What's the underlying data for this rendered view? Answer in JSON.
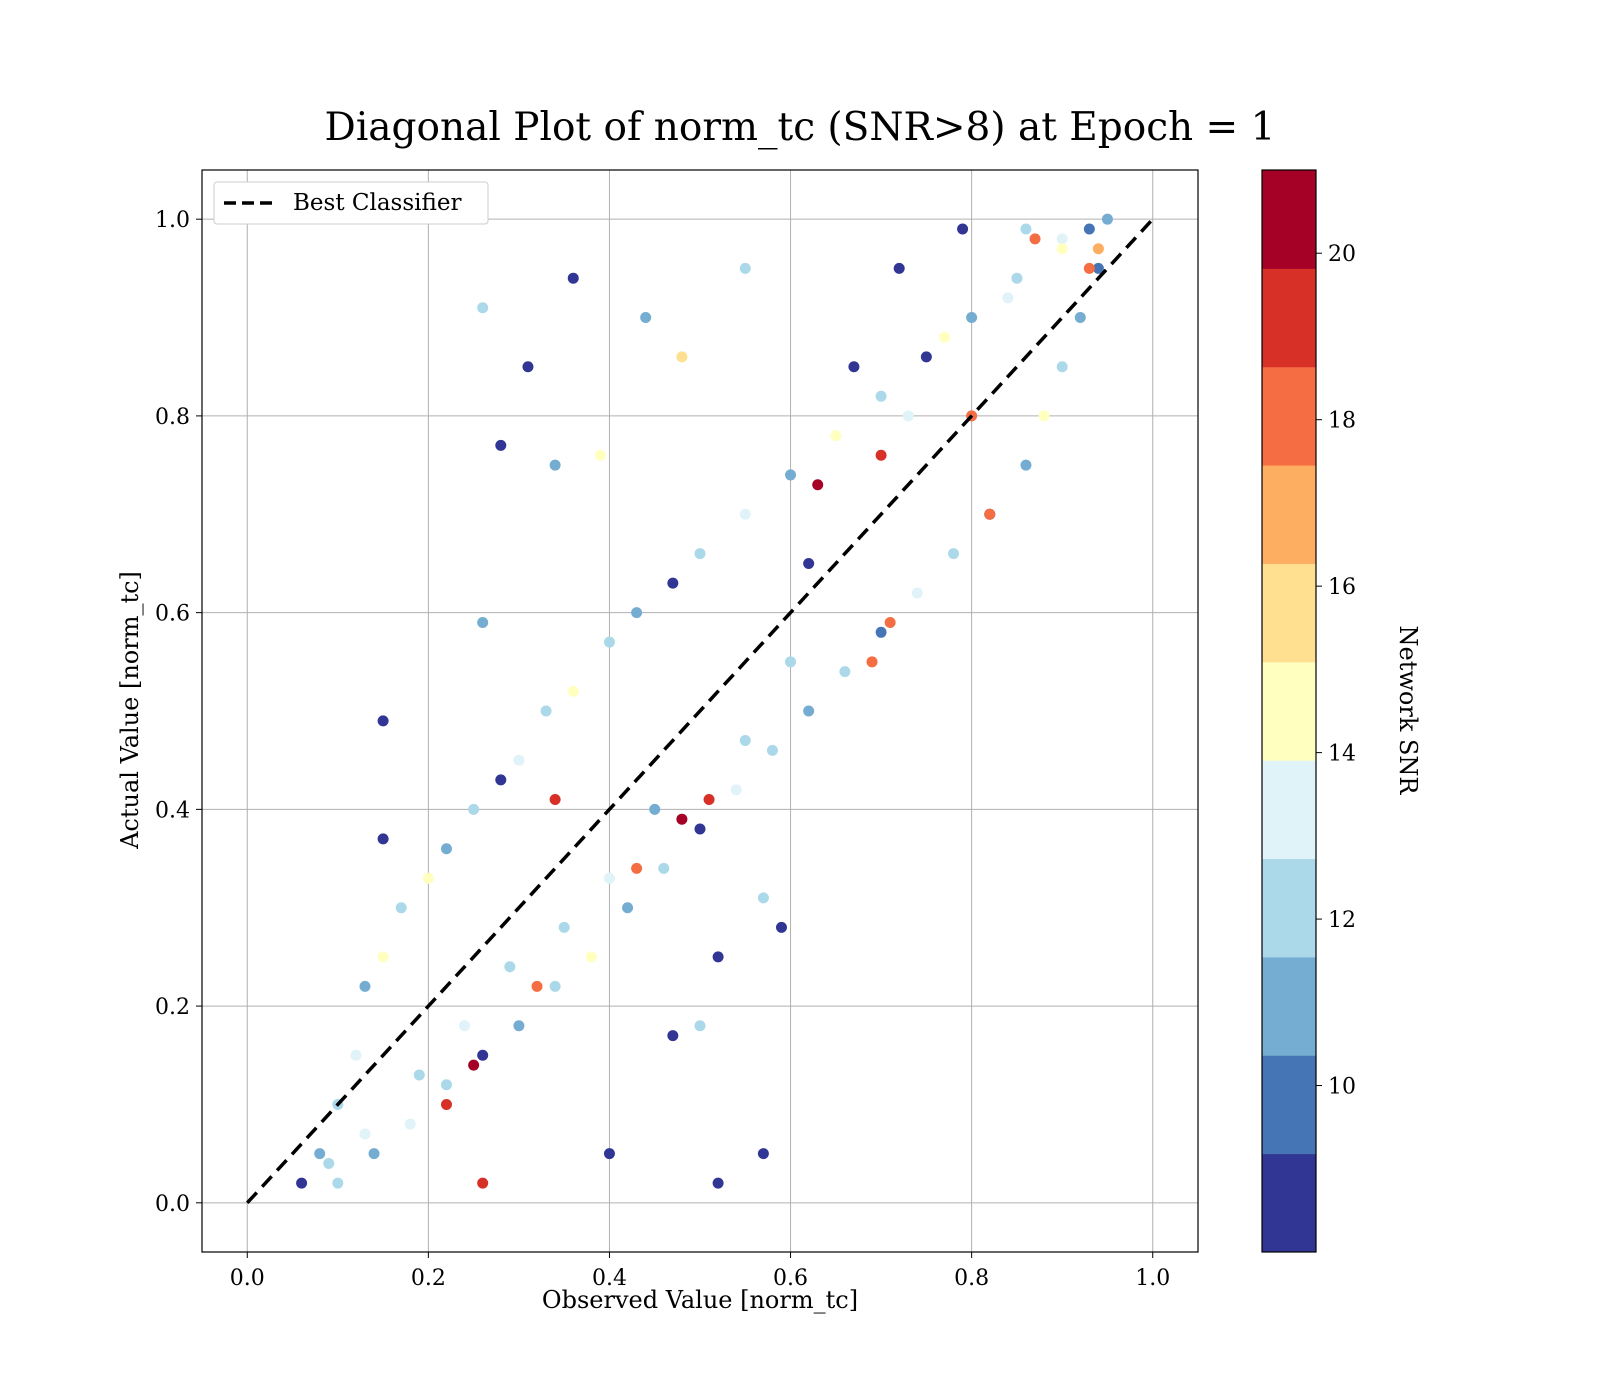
{
  "chart_data": {
    "type": "scatter",
    "title": "Diagonal Plot of norm_tc (SNR>8) at Epoch = 1",
    "xlabel": "Observed Value [norm_tc]",
    "ylabel": "Actual Value [norm_tc]",
    "xlim": [
      -0.05,
      1.05
    ],
    "ylim": [
      -0.05,
      1.05
    ],
    "xticks": [
      "0.0",
      "0.2",
      "0.4",
      "0.6",
      "0.8",
      "1.0"
    ],
    "yticks": [
      "0.0",
      "0.2",
      "0.4",
      "0.6",
      "0.8",
      "1.0"
    ],
    "grid": true,
    "legend": {
      "placement": "upper-left",
      "entries": [
        "Best Classifier"
      ]
    },
    "reference_line": {
      "name": "Best Classifier",
      "x": [
        0.0,
        1.0
      ],
      "y": [
        0.0,
        1.0
      ],
      "style": "dashed",
      "color": "#000000"
    },
    "colorbar": {
      "label": "Network SNR",
      "range": [
        8,
        21
      ],
      "ticks": [
        "10",
        "12",
        "14",
        "16",
        "18",
        "20"
      ],
      "colors": [
        "#313695",
        "#4575b4",
        "#74add1",
        "#abd9e9",
        "#e0f3f8",
        "#ffffbf",
        "#fee090",
        "#fdae61",
        "#f46d43",
        "#d73027",
        "#a50026"
      ]
    },
    "series": [
      {
        "kind": "scatter",
        "points": [
          [
            0.06,
            0.02,
            9
          ],
          [
            0.08,
            0.05,
            11
          ],
          [
            0.1,
            0.1,
            12
          ],
          [
            0.12,
            0.15,
            13
          ],
          [
            0.13,
            0.22,
            11
          ],
          [
            0.15,
            0.25,
            14
          ],
          [
            0.17,
            0.3,
            12
          ],
          [
            0.2,
            0.33,
            15
          ],
          [
            0.22,
            0.36,
            11
          ],
          [
            0.25,
            0.4,
            12
          ],
          [
            0.28,
            0.43,
            9
          ],
          [
            0.3,
            0.45,
            13
          ],
          [
            0.33,
            0.5,
            12
          ],
          [
            0.36,
            0.52,
            15
          ],
          [
            0.4,
            0.57,
            12
          ],
          [
            0.43,
            0.6,
            11
          ],
          [
            0.47,
            0.63,
            9
          ],
          [
            0.5,
            0.66,
            12
          ],
          [
            0.55,
            0.7,
            13
          ],
          [
            0.6,
            0.74,
            11
          ],
          [
            0.65,
            0.78,
            15
          ],
          [
            0.7,
            0.82,
            12
          ],
          [
            0.75,
            0.86,
            9
          ],
          [
            0.8,
            0.9,
            11
          ],
          [
            0.85,
            0.94,
            12
          ],
          [
            0.9,
            0.98,
            13
          ],
          [
            0.93,
            0.99,
            10
          ],
          [
            0.95,
            1.0,
            11
          ],
          [
            0.1,
            0.02,
            12
          ],
          [
            0.14,
            0.05,
            11
          ],
          [
            0.18,
            0.08,
            13
          ],
          [
            0.22,
            0.12,
            12
          ],
          [
            0.26,
            0.15,
            9
          ],
          [
            0.3,
            0.18,
            11
          ],
          [
            0.34,
            0.22,
            12
          ],
          [
            0.38,
            0.25,
            14
          ],
          [
            0.42,
            0.3,
            11
          ],
          [
            0.46,
            0.34,
            12
          ],
          [
            0.5,
            0.38,
            9
          ],
          [
            0.54,
            0.42,
            13
          ],
          [
            0.58,
            0.46,
            12
          ],
          [
            0.62,
            0.5,
            11
          ],
          [
            0.66,
            0.54,
            12
          ],
          [
            0.7,
            0.58,
            10
          ],
          [
            0.74,
            0.62,
            13
          ],
          [
            0.78,
            0.66,
            12
          ],
          [
            0.82,
            0.7,
            9
          ],
          [
            0.86,
            0.75,
            11
          ],
          [
            0.88,
            0.8,
            14
          ],
          [
            0.9,
            0.85,
            12
          ],
          [
            0.92,
            0.9,
            11
          ],
          [
            0.94,
            0.95,
            10
          ],
          [
            0.34,
            0.41,
            19
          ],
          [
            0.51,
            0.41,
            19
          ],
          [
            0.48,
            0.39,
            20
          ],
          [
            0.25,
            0.14,
            20
          ],
          [
            0.26,
            0.02,
            19
          ],
          [
            0.7,
            0.76,
            19
          ],
          [
            0.71,
            0.59,
            18
          ],
          [
            0.69,
            0.55,
            18
          ],
          [
            0.63,
            0.73,
            21
          ],
          [
            0.8,
            0.8,
            18
          ],
          [
            0.82,
            0.7,
            18
          ],
          [
            0.93,
            0.95,
            18
          ],
          [
            0.94,
            0.97,
            17
          ],
          [
            0.87,
            0.98,
            18
          ],
          [
            0.43,
            0.34,
            18
          ],
          [
            0.22,
            0.1,
            19
          ],
          [
            0.32,
            0.22,
            18
          ],
          [
            0.26,
            0.91,
            12
          ],
          [
            0.31,
            0.85,
            9
          ],
          [
            0.36,
            0.94,
            9
          ],
          [
            0.28,
            0.77,
            9
          ],
          [
            0.34,
            0.75,
            11
          ],
          [
            0.15,
            0.49,
            9
          ],
          [
            0.15,
            0.37,
            9
          ],
          [
            0.26,
            0.59,
            11
          ],
          [
            0.39,
            0.76,
            14
          ],
          [
            0.48,
            0.86,
            16
          ],
          [
            0.55,
            0.95,
            12
          ],
          [
            0.44,
            0.9,
            11
          ],
          [
            0.57,
            0.31,
            12
          ],
          [
            0.59,
            0.28,
            9
          ],
          [
            0.57,
            0.05,
            9
          ],
          [
            0.52,
            0.02,
            9
          ],
          [
            0.4,
            0.05,
            9
          ],
          [
            0.5,
            0.18,
            12
          ],
          [
            0.47,
            0.17,
            9
          ],
          [
            0.52,
            0.25,
            9
          ],
          [
            0.62,
            0.65,
            9
          ],
          [
            0.67,
            0.85,
            9
          ],
          [
            0.72,
            0.95,
            9
          ],
          [
            0.79,
            0.99,
            9
          ],
          [
            0.86,
            0.99,
            12
          ],
          [
            0.9,
            0.97,
            15
          ],
          [
            0.84,
            0.92,
            13
          ],
          [
            0.77,
            0.88,
            14
          ],
          [
            0.73,
            0.8,
            13
          ],
          [
            0.6,
            0.55,
            12
          ],
          [
            0.55,
            0.47,
            12
          ],
          [
            0.45,
            0.4,
            11
          ],
          [
            0.4,
            0.33,
            13
          ],
          [
            0.35,
            0.28,
            12
          ],
          [
            0.29,
            0.24,
            12
          ],
          [
            0.24,
            0.18,
            13
          ],
          [
            0.19,
            0.13,
            12
          ],
          [
            0.13,
            0.07,
            13
          ],
          [
            0.09,
            0.04,
            12
          ]
        ]
      }
    ]
  }
}
